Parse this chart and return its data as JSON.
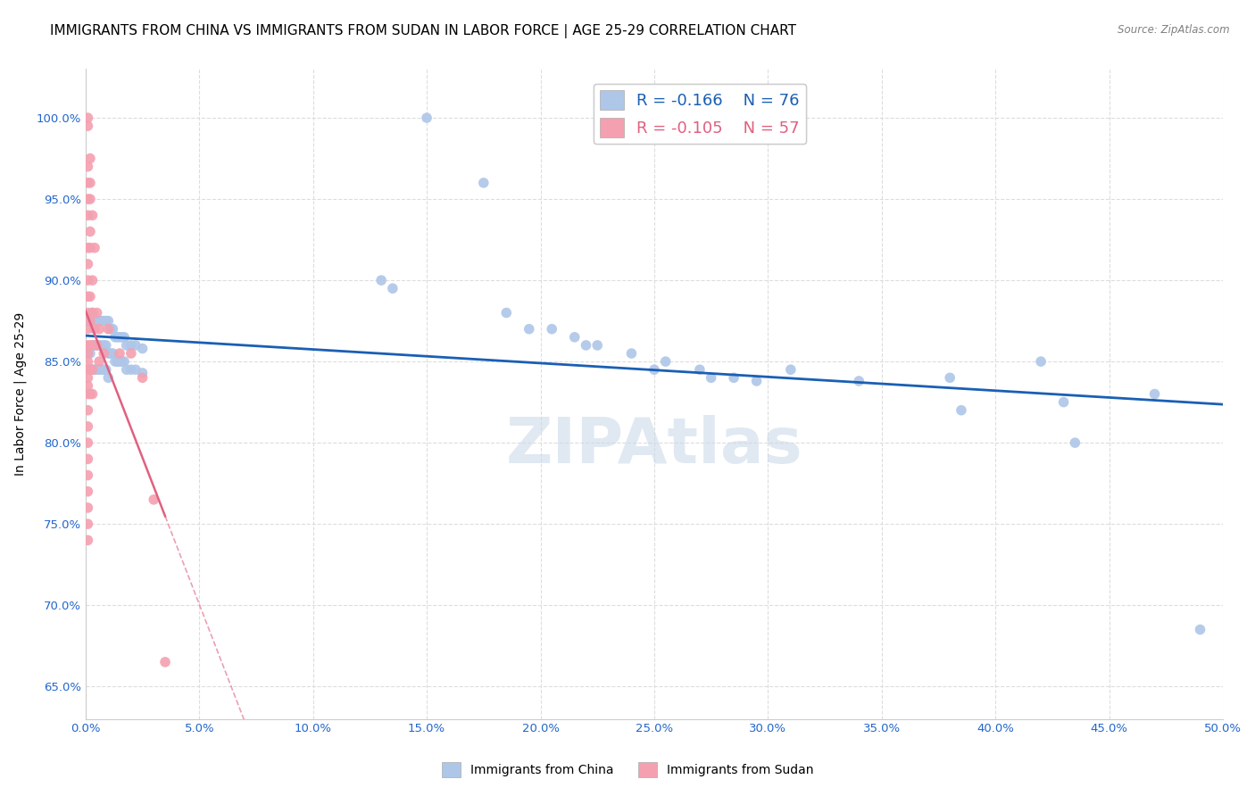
{
  "title": "IMMIGRANTS FROM CHINA VS IMMIGRANTS FROM SUDAN IN LABOR FORCE | AGE 25-29 CORRELATION CHART",
  "source": "Source: ZipAtlas.com",
  "ylabel": "In Labor Force | Age 25-29",
  "xlim": [
    0.0,
    0.5
  ],
  "ylim": [
    0.63,
    1.03
  ],
  "xticks": [
    0.0,
    0.05,
    0.1,
    0.15,
    0.2,
    0.25,
    0.3,
    0.35,
    0.4,
    0.45,
    0.5
  ],
  "yticks": [
    0.65,
    0.7,
    0.75,
    0.8,
    0.85,
    0.9,
    0.95,
    1.0
  ],
  "china_R": -0.166,
  "china_N": 76,
  "sudan_R": -0.105,
  "sudan_N": 57,
  "china_color": "#aec6e8",
  "sudan_color": "#f4a0b0",
  "china_line_color": "#1a5fb4",
  "sudan_line_color": "#e06080",
  "china_scatter": [
    [
      0.001,
      0.875
    ],
    [
      0.001,
      0.855
    ],
    [
      0.002,
      0.875
    ],
    [
      0.002,
      0.855
    ],
    [
      0.003,
      0.88
    ],
    [
      0.003,
      0.86
    ],
    [
      0.003,
      0.845
    ],
    [
      0.004,
      0.875
    ],
    [
      0.004,
      0.86
    ],
    [
      0.004,
      0.845
    ],
    [
      0.005,
      0.875
    ],
    [
      0.005,
      0.86
    ],
    [
      0.005,
      0.845
    ],
    [
      0.006,
      0.875
    ],
    [
      0.006,
      0.86
    ],
    [
      0.006,
      0.845
    ],
    [
      0.007,
      0.875
    ],
    [
      0.007,
      0.86
    ],
    [
      0.007,
      0.845
    ],
    [
      0.008,
      0.875
    ],
    [
      0.008,
      0.86
    ],
    [
      0.008,
      0.845
    ],
    [
      0.009,
      0.875
    ],
    [
      0.009,
      0.86
    ],
    [
      0.009,
      0.845
    ],
    [
      0.01,
      0.875
    ],
    [
      0.01,
      0.855
    ],
    [
      0.01,
      0.84
    ],
    [
      0.011,
      0.87
    ],
    [
      0.011,
      0.855
    ],
    [
      0.012,
      0.87
    ],
    [
      0.012,
      0.855
    ],
    [
      0.013,
      0.865
    ],
    [
      0.013,
      0.85
    ],
    [
      0.014,
      0.865
    ],
    [
      0.014,
      0.85
    ],
    [
      0.015,
      0.865
    ],
    [
      0.015,
      0.85
    ],
    [
      0.016,
      0.865
    ],
    [
      0.016,
      0.85
    ],
    [
      0.017,
      0.865
    ],
    [
      0.017,
      0.85
    ],
    [
      0.018,
      0.86
    ],
    [
      0.018,
      0.845
    ],
    [
      0.02,
      0.86
    ],
    [
      0.02,
      0.845
    ],
    [
      0.022,
      0.86
    ],
    [
      0.022,
      0.845
    ],
    [
      0.025,
      0.858
    ],
    [
      0.025,
      0.843
    ],
    [
      0.13,
      0.9
    ],
    [
      0.135,
      0.895
    ],
    [
      0.15,
      1.0
    ],
    [
      0.175,
      0.96
    ],
    [
      0.185,
      0.88
    ],
    [
      0.195,
      0.87
    ],
    [
      0.205,
      0.87
    ],
    [
      0.215,
      0.865
    ],
    [
      0.22,
      0.86
    ],
    [
      0.225,
      0.86
    ],
    [
      0.24,
      0.855
    ],
    [
      0.25,
      0.845
    ],
    [
      0.255,
      0.85
    ],
    [
      0.27,
      0.845
    ],
    [
      0.275,
      0.84
    ],
    [
      0.285,
      0.84
    ],
    [
      0.295,
      0.838
    ],
    [
      0.31,
      0.845
    ],
    [
      0.34,
      0.838
    ],
    [
      0.38,
      0.84
    ],
    [
      0.385,
      0.82
    ],
    [
      0.42,
      0.85
    ],
    [
      0.43,
      0.825
    ],
    [
      0.435,
      0.8
    ],
    [
      0.47,
      0.83
    ],
    [
      0.49,
      0.685
    ]
  ],
  "sudan_scatter": [
    [
      0.001,
      1.0
    ],
    [
      0.001,
      0.995
    ],
    [
      0.001,
      0.97
    ],
    [
      0.001,
      0.96
    ],
    [
      0.001,
      0.95
    ],
    [
      0.001,
      0.94
    ],
    [
      0.001,
      0.92
    ],
    [
      0.001,
      0.91
    ],
    [
      0.001,
      0.9
    ],
    [
      0.001,
      0.89
    ],
    [
      0.001,
      0.88
    ],
    [
      0.001,
      0.87
    ],
    [
      0.001,
      0.86
    ],
    [
      0.001,
      0.855
    ],
    [
      0.001,
      0.85
    ],
    [
      0.001,
      0.845
    ],
    [
      0.001,
      0.84
    ],
    [
      0.001,
      0.835
    ],
    [
      0.001,
      0.83
    ],
    [
      0.001,
      0.82
    ],
    [
      0.001,
      0.81
    ],
    [
      0.001,
      0.8
    ],
    [
      0.001,
      0.79
    ],
    [
      0.001,
      0.78
    ],
    [
      0.001,
      0.77
    ],
    [
      0.001,
      0.76
    ],
    [
      0.001,
      0.75
    ],
    [
      0.001,
      0.74
    ],
    [
      0.002,
      0.975
    ],
    [
      0.002,
      0.96
    ],
    [
      0.002,
      0.95
    ],
    [
      0.002,
      0.93
    ],
    [
      0.002,
      0.92
    ],
    [
      0.002,
      0.89
    ],
    [
      0.002,
      0.875
    ],
    [
      0.002,
      0.86
    ],
    [
      0.002,
      0.845
    ],
    [
      0.002,
      0.83
    ],
    [
      0.003,
      0.94
    ],
    [
      0.003,
      0.9
    ],
    [
      0.003,
      0.88
    ],
    [
      0.003,
      0.86
    ],
    [
      0.003,
      0.845
    ],
    [
      0.003,
      0.83
    ],
    [
      0.004,
      0.92
    ],
    [
      0.004,
      0.87
    ],
    [
      0.005,
      0.88
    ],
    [
      0.005,
      0.86
    ],
    [
      0.006,
      0.87
    ],
    [
      0.006,
      0.85
    ],
    [
      0.008,
      0.855
    ],
    [
      0.01,
      0.87
    ],
    [
      0.015,
      0.855
    ],
    [
      0.02,
      0.855
    ],
    [
      0.025,
      0.84
    ],
    [
      0.03,
      0.765
    ],
    [
      0.035,
      0.665
    ]
  ],
  "watermark": "ZIPAtlas",
  "background_color": "#ffffff",
  "grid_color": "#dddddd",
  "axis_label_color": "#2266cc",
  "title_fontsize": 11,
  "tick_fontsize": 9.5
}
